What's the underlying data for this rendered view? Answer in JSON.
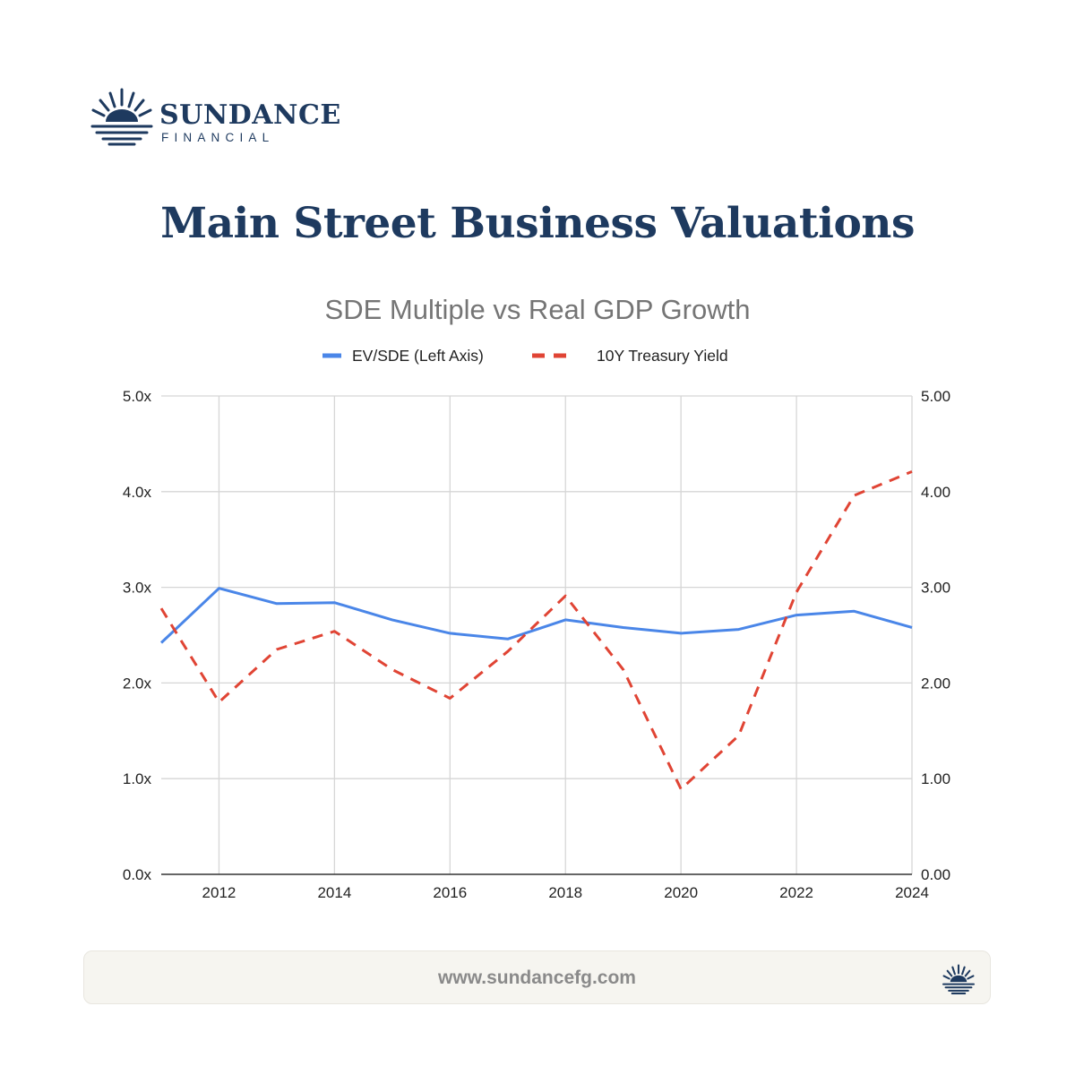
{
  "brand": {
    "name": "SUNDANCE",
    "subtitle": "FINANCIAL",
    "color": "#1e3a5f"
  },
  "header": {
    "title": "Main Street Business Valuations"
  },
  "footer": {
    "url": "www.sundancefg.com"
  },
  "chart_data": {
    "type": "line",
    "title": "SDE Multiple vs Real GDP Growth",
    "x": [
      2011,
      2012,
      2013,
      2014,
      2015,
      2016,
      2017,
      2018,
      2019,
      2020,
      2021,
      2022,
      2023,
      2024
    ],
    "xticks": [
      "2012",
      "2014",
      "2016",
      "2018",
      "2020",
      "2022",
      "2024"
    ],
    "xlim": [
      2011,
      2024
    ],
    "ylim_left": [
      0,
      5
    ],
    "ylim_right": [
      0,
      5
    ],
    "yticks_left": [
      "0.0x",
      "1.0x",
      "2.0x",
      "3.0x",
      "4.0x",
      "5.0x"
    ],
    "yticks_right": [
      "0.00",
      "1.00",
      "2.00",
      "3.00",
      "4.00",
      "5.00"
    ],
    "grid": true,
    "legend_position": "top",
    "series": [
      {
        "name": "EV/SDE (Left Axis)",
        "axis": "left",
        "style": "solid",
        "color": "#4a86e8",
        "values": [
          2.42,
          2.99,
          2.83,
          2.84,
          2.66,
          2.52,
          2.46,
          2.66,
          2.58,
          2.52,
          2.56,
          2.71,
          2.75,
          2.58
        ]
      },
      {
        "name": "10Y Treasury Yield",
        "axis": "right",
        "style": "dashed",
        "color": "#e04434",
        "values": [
          2.78,
          1.8,
          2.35,
          2.54,
          2.14,
          1.84,
          2.33,
          2.91,
          2.14,
          0.89,
          1.45,
          2.95,
          3.96,
          4.21
        ]
      }
    ]
  }
}
